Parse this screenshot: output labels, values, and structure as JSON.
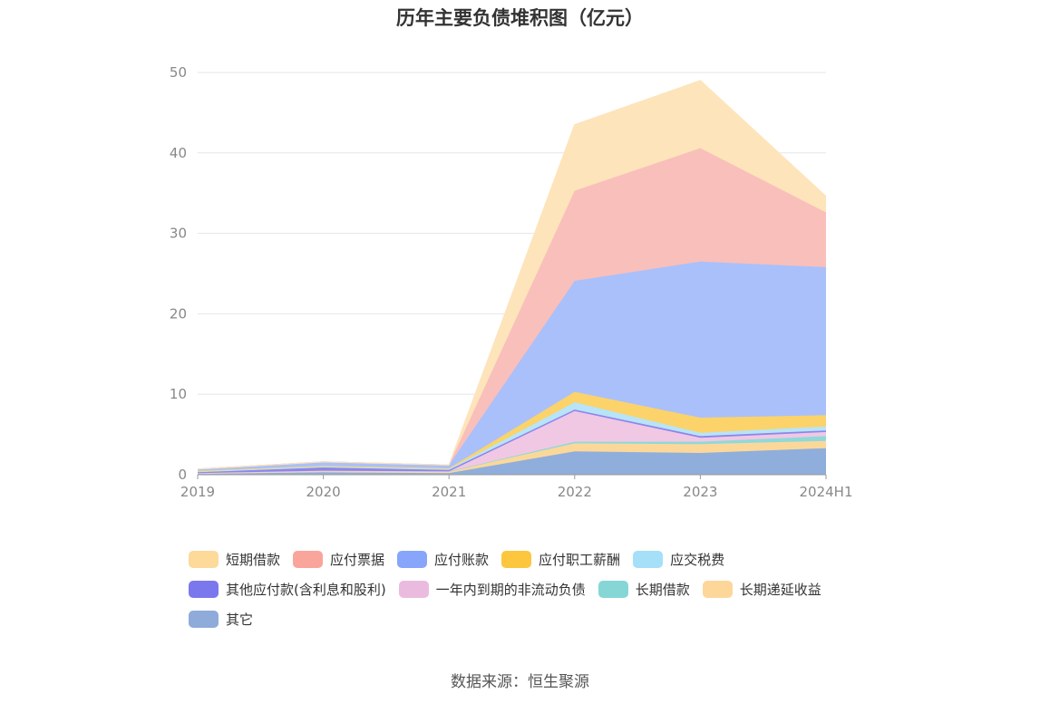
{
  "chart_data": {
    "type": "area",
    "stacked": true,
    "title": "历年主要负债堆积图（亿元）",
    "categories": [
      "2019",
      "2020",
      "2021",
      "2022",
      "2023",
      "2024H1"
    ],
    "ylim": [
      0,
      50
    ],
    "yticks": [
      0,
      10,
      20,
      30,
      40,
      50
    ],
    "grid": true,
    "legend_position": "bottom",
    "series": [
      {
        "name": "其它",
        "color": "#8faedc",
        "values": [
          0.1,
          0.3,
          0.2,
          2.9,
          2.7,
          3.3
        ]
      },
      {
        "name": "长期递延收益",
        "color": "#fbd89a",
        "values": [
          0.1,
          0.2,
          0.2,
          1.0,
          1.1,
          0.9
        ]
      },
      {
        "name": "长期借款",
        "color": "#8fd9d9",
        "values": [
          0.0,
          0.0,
          0.0,
          0.2,
          0.3,
          0.6
        ]
      },
      {
        "name": "一年内到期的非流动负债",
        "color": "#f0c8e3",
        "values": [
          0.0,
          0.0,
          0.0,
          3.8,
          0.5,
          0.5
        ]
      },
      {
        "name": "其他应付款(含利息和股利)",
        "color": "#8e85ec",
        "values": [
          0.1,
          0.4,
          0.2,
          0.2,
          0.2,
          0.2
        ]
      },
      {
        "name": "应交税费",
        "color": "#b7e4f8",
        "values": [
          0.1,
          0.1,
          0.1,
          0.9,
          0.4,
          0.5
        ]
      },
      {
        "name": "应付职工薪酬",
        "color": "#fbd36a",
        "values": [
          0.1,
          0.1,
          0.1,
          1.3,
          1.9,
          1.4
        ]
      },
      {
        "name": "应付账款",
        "color": "#a9c0fb",
        "values": [
          0.2,
          0.5,
          0.4,
          13.8,
          19.4,
          18.4
        ]
      },
      {
        "name": "应付票据",
        "color": "#f9bfbb",
        "values": [
          0.0,
          0.0,
          0.0,
          11.2,
          14.1,
          6.8
        ]
      },
      {
        "name": "短期借款",
        "color": "#fde4ba",
        "values": [
          0.0,
          0.0,
          0.0,
          8.2,
          8.4,
          2.0
        ]
      }
    ]
  },
  "legend": [
    {
      "label": "短期借款",
      "color": "#fdd99a"
    },
    {
      "label": "应付票据",
      "color": "#f9a59b"
    },
    {
      "label": "应付账款",
      "color": "#87a6fb"
    },
    {
      "label": "应付职工薪酬",
      "color": "#fcc63e"
    },
    {
      "label": "应交税费",
      "color": "#a6dff8"
    },
    {
      "label": "其他应付款(含利息和股利)",
      "color": "#7b78ee"
    },
    {
      "label": "一年内到期的非流动负债",
      "color": "#ebbbdf"
    },
    {
      "label": "长期借款",
      "color": "#86d6d6"
    },
    {
      "label": "长期递延收益",
      "color": "#fdd79a"
    },
    {
      "label": "其它",
      "color": "#8fabda"
    }
  ],
  "source": "数据来源：恒生聚源"
}
